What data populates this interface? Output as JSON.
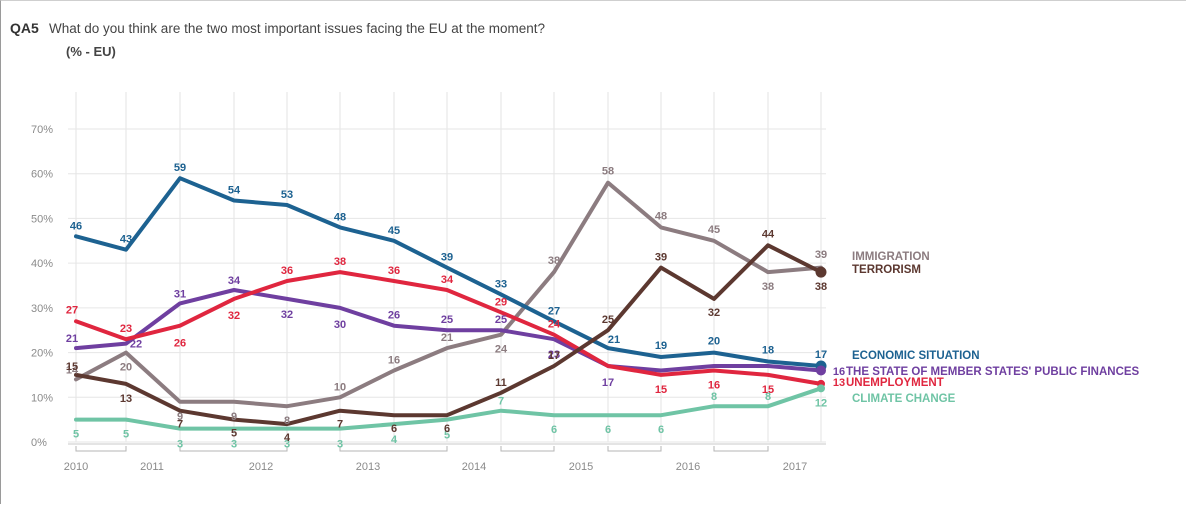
{
  "question": {
    "code": "QA5",
    "text": "What do you think are the two most important issues facing the EU at the moment?",
    "subtitle": "(% - EU)"
  },
  "chart_data": {
    "type": "line",
    "title": "What do you think are the two most important issues facing the EU at the moment?",
    "subtitle": "(% - EU)",
    "ylim": [
      0,
      70
    ],
    "y_ticks": [
      "0%",
      "10%",
      "20%",
      "30%",
      "40%",
      "50%",
      "60%",
      "70%"
    ],
    "x_ticks": [
      "2010",
      "2011",
      "2012",
      "2013",
      "2014",
      "2015",
      "2016",
      "2017"
    ],
    "x_positions": [
      2010.0,
      2010.45,
      2010.9,
      2011.35,
      2011.85,
      2012.35,
      2012.85,
      2013.25,
      2013.8,
      2014.25,
      2014.75,
      2015.2,
      2015.7,
      2016.2,
      2016.7,
      2017.2
    ],
    "grid": true,
    "legend": "right",
    "series": [
      {
        "name": "IMMIGRATION",
        "color": "#8c7c80",
        "values": [
          14,
          20,
          9,
          9,
          8,
          10,
          16,
          21,
          24,
          38,
          58,
          48,
          45,
          38,
          39
        ],
        "x_index": [
          0,
          1,
          2,
          3,
          4,
          5,
          6,
          7,
          8,
          9,
          10,
          11,
          12,
          13,
          14
        ]
      },
      {
        "name": "TERRORISM",
        "color": "#5c3830",
        "values": [
          15,
          13,
          7,
          5,
          4,
          7,
          6,
          6,
          11,
          17,
          25,
          39,
          32,
          44,
          38
        ],
        "x_index": [
          0,
          1,
          2,
          3,
          4,
          5,
          6,
          7,
          8,
          9,
          10,
          11,
          12,
          13,
          14
        ]
      },
      {
        "name": "ECONOMIC SITUATION",
        "color": "#1d6291",
        "values": [
          46,
          43,
          59,
          54,
          53,
          48,
          45,
          39,
          33,
          27,
          21,
          19,
          20,
          18,
          17
        ],
        "x_index": [
          0,
          1,
          2,
          3,
          4,
          5,
          6,
          7,
          8,
          9,
          10,
          11,
          12,
          13,
          14
        ]
      },
      {
        "name": "THE STATE OF MEMBER STATES' PUBLIC FINANCES",
        "color": "#6f3fa0",
        "values": [
          21,
          22,
          31,
          34,
          32,
          30,
          26,
          25,
          25,
          23,
          17,
          16,
          17,
          17,
          16
        ],
        "x_index": [
          0,
          1,
          2,
          3,
          4,
          5,
          6,
          7,
          8,
          9,
          10,
          11,
          12,
          13,
          14
        ]
      },
      {
        "name": "UNEMPLOYMENT",
        "color": "#e0263f",
        "values": [
          27,
          23,
          26,
          32,
          36,
          38,
          36,
          34,
          29,
          24,
          17,
          15,
          16,
          15,
          13
        ],
        "x_index": [
          0,
          1,
          2,
          3,
          4,
          5,
          6,
          7,
          8,
          9,
          10,
          11,
          12,
          13,
          14
        ]
      },
      {
        "name": "CLIMATE CHANGE",
        "color": "#6fc4a5",
        "values": [
          5,
          5,
          3,
          3,
          3,
          3,
          4,
          5,
          7,
          6,
          6,
          6,
          8,
          8,
          12
        ],
        "x_index": [
          0,
          1,
          2,
          3,
          4,
          5,
          6,
          7,
          8,
          9,
          10,
          11,
          12,
          13,
          14
        ]
      }
    ],
    "legend_entries": [
      {
        "text": "IMMIGRATION",
        "color": "#8c7c80"
      },
      {
        "text": "TERRORISM",
        "color": "#5c3830"
      },
      {
        "text": "ECONOMIC SITUATION",
        "color": "#1d6291"
      },
      {
        "text": "THE STATE OF MEMBER STATES' PUBLIC FINANCES",
        "color": "#6f3fa0"
      },
      {
        "text": "UNEMPLOYMENT",
        "color": "#e0263f"
      },
      {
        "text": "CLIMATE CHANGE",
        "color": "#6fc4a5"
      }
    ]
  }
}
